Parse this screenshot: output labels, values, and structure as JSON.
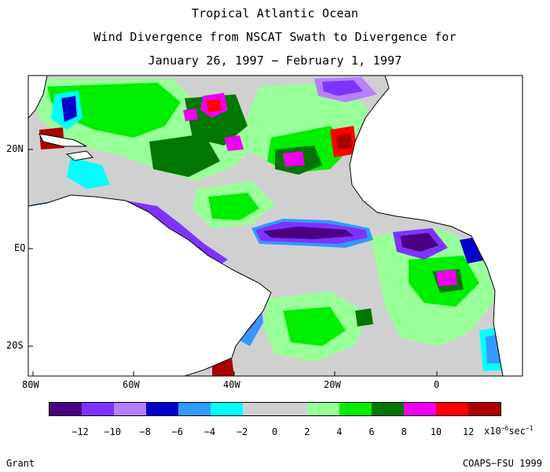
{
  "title": {
    "line1": "Tropical Atlantic Ocean",
    "line2": "Wind Divergence from NSCAT Swath to Divergence for",
    "line3": "January 26, 1997 − February 1, 1997"
  },
  "axes": {
    "lat_labels": [
      "20N",
      "EQ",
      "20S"
    ],
    "lon_labels": [
      "80W",
      "60W",
      "40W",
      "20W",
      "0"
    ]
  },
  "colorbar": {
    "colors": [
      "#4a0080",
      "#7f33ff",
      "#b780ff",
      "#0000cc",
      "#3399ff",
      "#00ffff",
      "#d0d0d0",
      "#d0d0d0",
      "#99ff99",
      "#00ee00",
      "#007700",
      "#ee00ee",
      "#ff0000",
      "#aa0000"
    ],
    "ticks": [
      "−12",
      "−10",
      "−8",
      "−6",
      "−4",
      "−2",
      "0",
      "2",
      "4",
      "6",
      "8",
      "10",
      "12"
    ],
    "unit_prefix": "x10",
    "unit_exp": "−6",
    "unit_suffix": "sec",
    "unit_exp2": "−1"
  },
  "footer": {
    "author": "Grant",
    "credit": "COAPS−FSU 1999"
  }
}
